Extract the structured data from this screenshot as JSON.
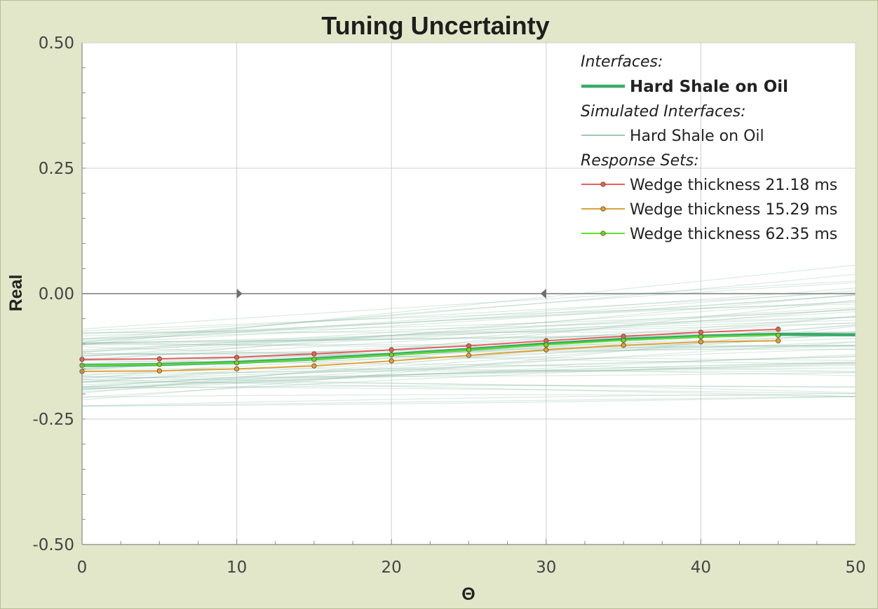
{
  "chart_data": {
    "type": "line",
    "title": "Tuning Uncertainty",
    "xlabel": "Θ",
    "ylabel": "Real",
    "xlim": [
      0,
      50
    ],
    "ylim": [
      -0.5,
      0.5
    ],
    "x_ticks": [
      "0",
      "10",
      "20",
      "30",
      "40",
      "50"
    ],
    "y_ticks": [
      "0.50",
      "0.25",
      "0.00",
      "-0.25",
      "-0.50"
    ],
    "grid": true,
    "legend_position": "top-right",
    "reference_line_y": 0,
    "zero_line_markers_x": [
      10,
      30
    ],
    "legend": {
      "interfaces_header": "Interfaces:",
      "interface_label": "Hard Shale on Oil",
      "simulated_header": "Simulated Interfaces:",
      "simulated_label": "Hard Shale on Oil",
      "response_header": "Response Sets:",
      "response_labels": [
        "Wedge thickness 21.18 ms",
        "Wedge thickness 15.29 ms",
        "Wedge thickness 62.35 ms"
      ]
    },
    "series": [
      {
        "name": "Hard Shale on Oil",
        "role": "interface",
        "color": "#3aaa6a",
        "x": [
          0,
          5,
          10,
          15,
          20,
          25,
          30,
          35,
          40,
          45,
          50
        ],
        "y": [
          -0.143,
          -0.141,
          -0.137,
          -0.13,
          -0.121,
          -0.111,
          -0.1,
          -0.091,
          -0.085,
          -0.081,
          -0.082
        ]
      },
      {
        "name": "Wedge thickness 21.18 ms",
        "role": "response",
        "color": "#e26060",
        "markers": true,
        "x": [
          0,
          5,
          10,
          15,
          20,
          25,
          30,
          35,
          40,
          45
        ],
        "y": [
          -0.131,
          -0.13,
          -0.127,
          -0.12,
          -0.112,
          -0.104,
          -0.094,
          -0.085,
          -0.077,
          -0.071
        ]
      },
      {
        "name": "Wedge thickness 15.29 ms",
        "role": "response",
        "color": "#dda23a",
        "markers": true,
        "x": [
          0,
          5,
          10,
          15,
          20,
          25,
          30,
          35,
          40,
          45
        ],
        "y": [
          -0.155,
          -0.154,
          -0.15,
          -0.144,
          -0.134,
          -0.123,
          -0.112,
          -0.103,
          -0.096,
          -0.094
        ]
      },
      {
        "name": "Wedge thickness 62.35 ms",
        "role": "response",
        "color": "#5ee02a",
        "markers": true,
        "x": [
          0,
          5,
          10,
          15,
          20,
          25,
          30,
          35,
          40,
          45
        ],
        "y": [
          -0.143,
          -0.141,
          -0.138,
          -0.131,
          -0.122,
          -0.112,
          -0.102,
          -0.093,
          -0.086,
          -0.083
        ]
      }
    ],
    "simulated_interfaces": {
      "color": "#7fb59a",
      "count": 70,
      "x": [
        0,
        50
      ],
      "start_y_range": [
        -0.225,
        -0.07
      ],
      "end_y_range": [
        -0.205,
        0.09
      ]
    }
  }
}
